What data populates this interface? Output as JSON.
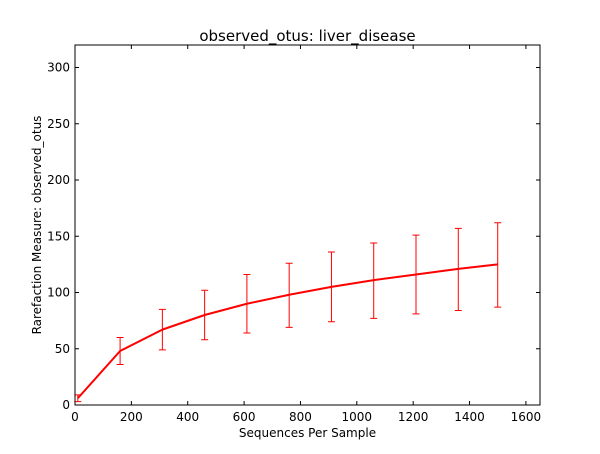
{
  "chart_data": {
    "type": "line",
    "title": "observed_otus: liver_disease",
    "xlabel": "Sequences Per Sample",
    "ylabel": "Rarefaction Measure: observed_otus",
    "xlim": [
      0,
      1650
    ],
    "ylim": [
      0,
      320
    ],
    "xticks": [
      0,
      200,
      400,
      600,
      800,
      1000,
      1200,
      1400,
      1600
    ],
    "yticks": [
      0,
      50,
      100,
      150,
      200,
      250,
      300
    ],
    "grid": false,
    "series": [
      {
        "color": "#ff0000",
        "x": [
          10,
          160,
          310,
          460,
          610,
          760,
          910,
          1060,
          1210,
          1360,
          1500
        ],
        "y": [
          6,
          48,
          67,
          80,
          90,
          98,
          105,
          111,
          116,
          121,
          125
        ],
        "yerr_low": [
          3,
          36,
          49,
          58,
          64,
          69,
          74,
          77,
          81,
          84,
          87
        ],
        "yerr_high": [
          9,
          60,
          85,
          102,
          116,
          126,
          136,
          144,
          151,
          157,
          162
        ]
      }
    ]
  }
}
